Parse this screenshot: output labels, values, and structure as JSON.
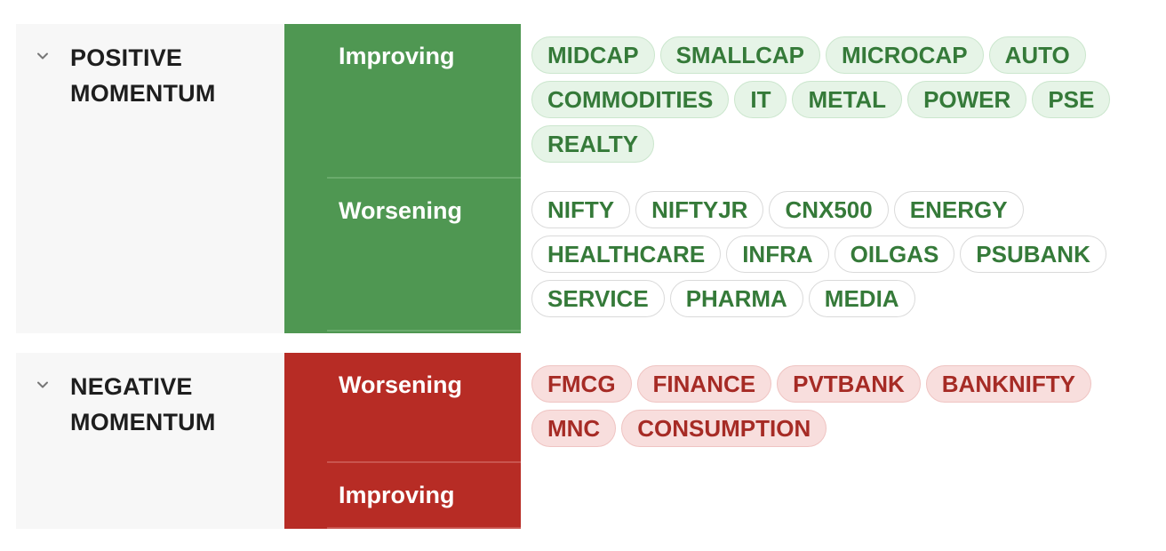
{
  "colors": {
    "positive": "#4f9752",
    "negative": "#b72c25",
    "positive_text": "#357a39",
    "negative_text": "#a62b25"
  },
  "sections": [
    {
      "title_line1": "POSITIVE",
      "title_line2": "MOMENTUM",
      "icon": "chevron-down-icon",
      "groups": [
        {
          "label": "Improving",
          "chips": [
            "MIDCAP",
            "SMALLCAP",
            "MICROCAP",
            "AUTO",
            "COMMODITIES",
            "IT",
            "METAL",
            "POWER",
            "PSE",
            "REALTY"
          ]
        },
        {
          "label": "Worsening",
          "chips": [
            "NIFTY",
            "NIFTYJR",
            "CNX500",
            "ENERGY",
            "HEALTHCARE",
            "INFRA",
            "OILGAS",
            "PSUBANK",
            "SERVICE",
            "PHARMA",
            "MEDIA"
          ]
        }
      ]
    },
    {
      "title_line1": "NEGATIVE",
      "title_line2": "MOMENTUM",
      "icon": "chevron-down-icon",
      "groups": [
        {
          "label": "Worsening",
          "chips": [
            "FMCG",
            "FINANCE",
            "PVTBANK",
            "BANKNIFTY",
            "MNC",
            "CONSUMPTION"
          ]
        },
        {
          "label": "Improving",
          "chips": []
        }
      ]
    }
  ]
}
